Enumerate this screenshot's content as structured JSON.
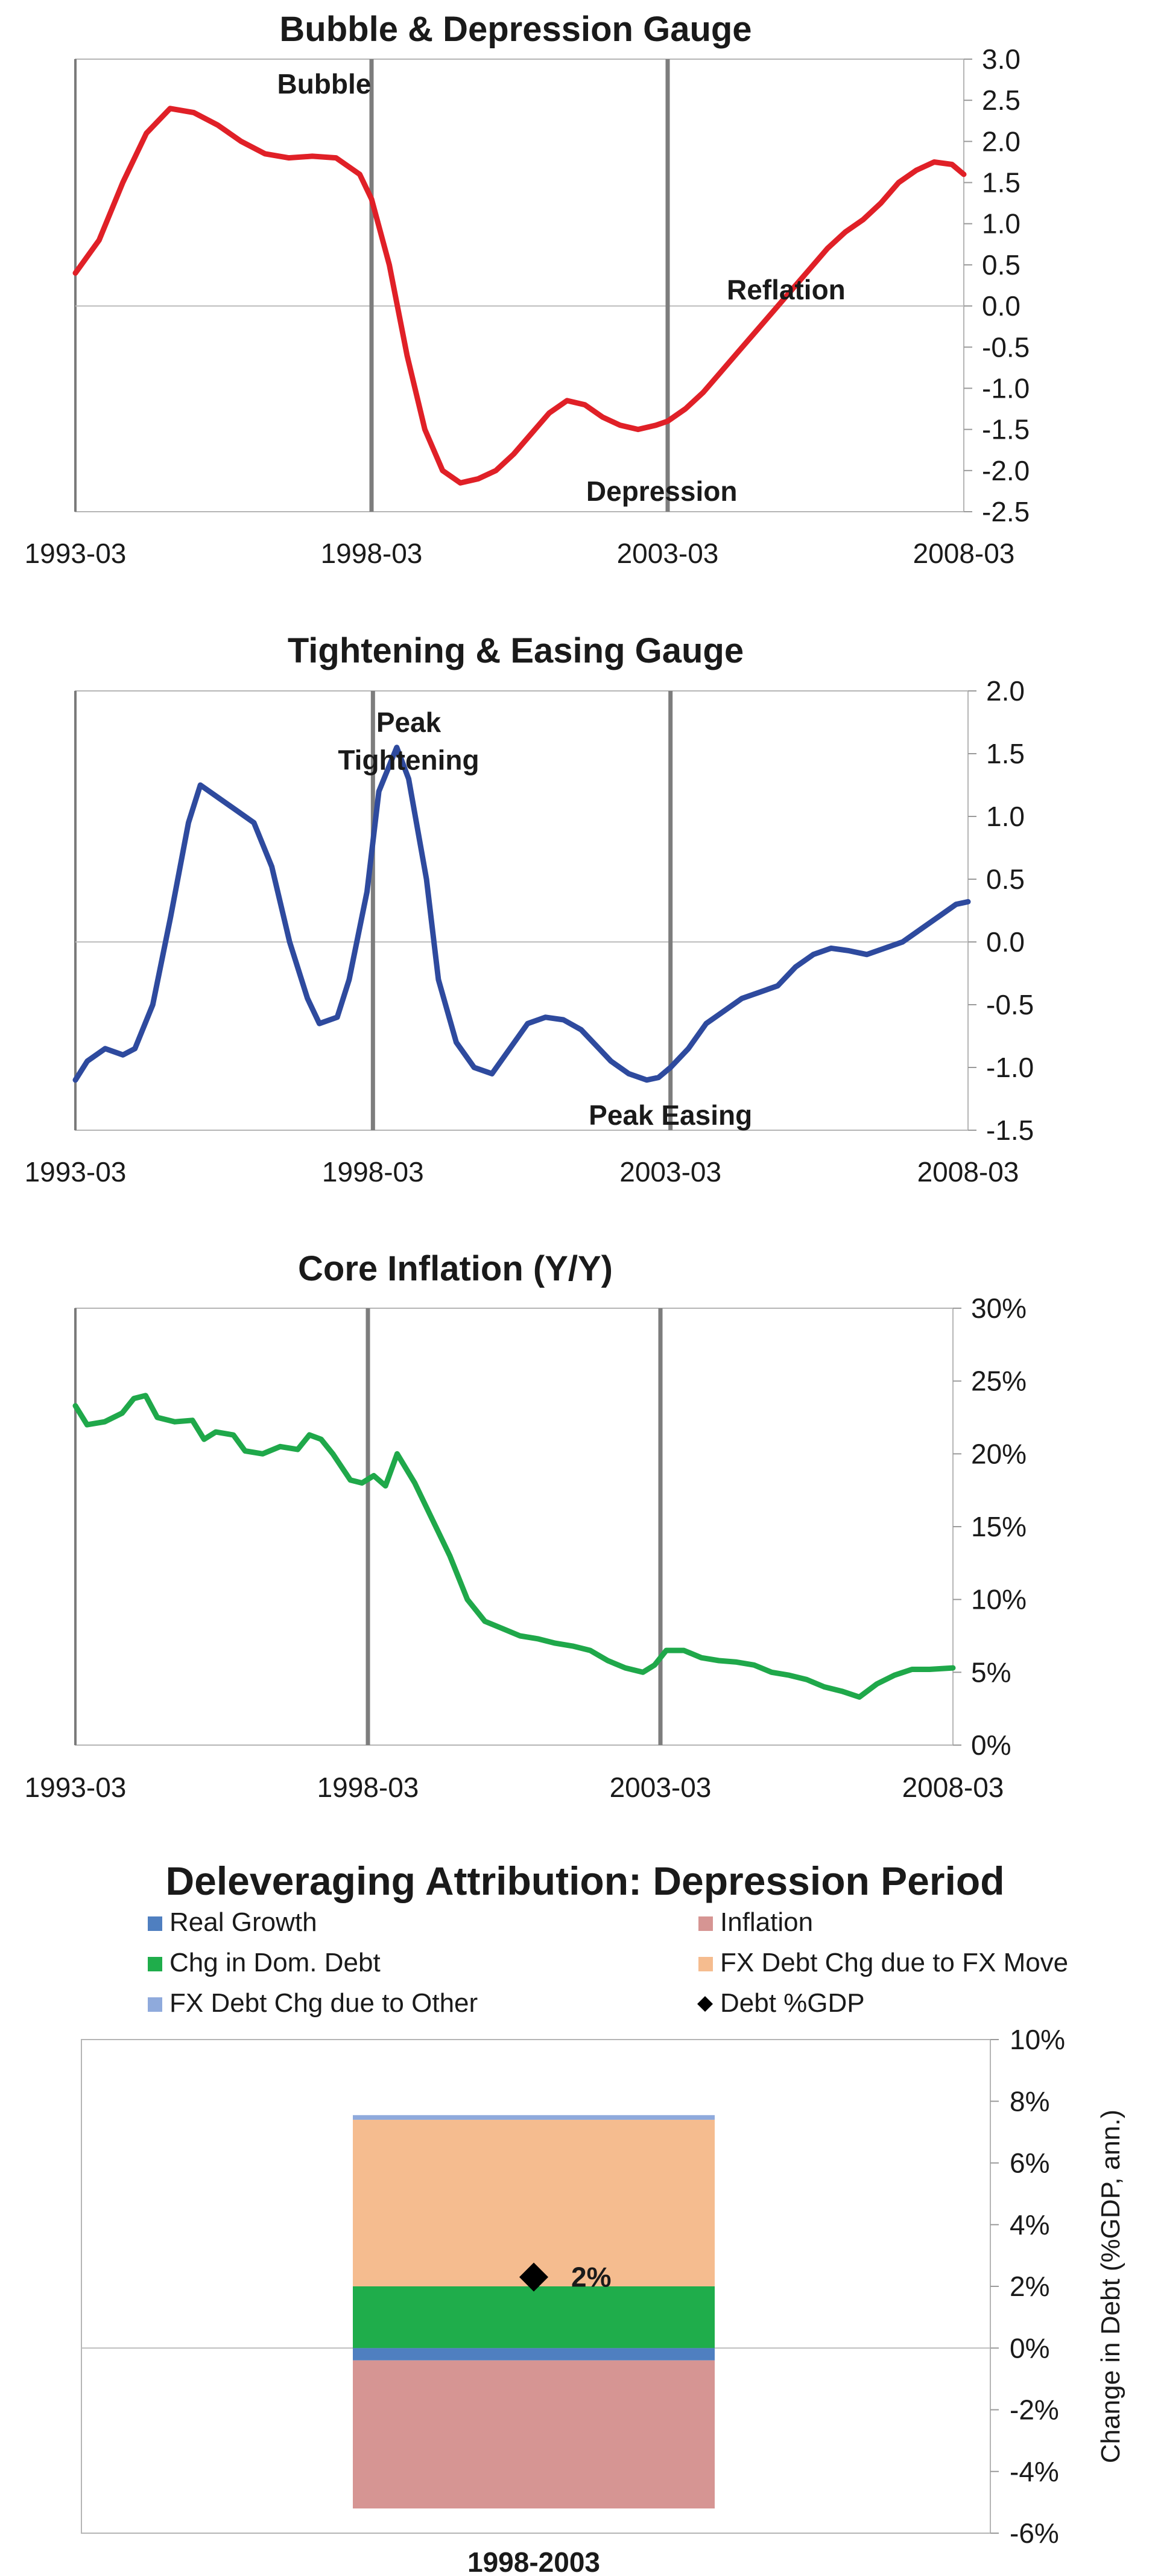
{
  "chart_data": [
    {
      "type": "line",
      "title": "Bubble & Depression Gauge",
      "x_ticks": [
        "1993-03",
        "1998-03",
        "2003-03",
        "2008-03"
      ],
      "x_range": [
        1993.0,
        2008.0
      ],
      "ylim": [
        -2.5,
        3.0
      ],
      "y_ticks": [
        "3.0",
        "2.5",
        "2.0",
        "1.5",
        "1.0",
        "0.5",
        "0.0",
        "-0.5",
        "-1.0",
        "-1.5",
        "-2.0",
        "-2.5"
      ],
      "y_tick_values": [
        3.0,
        2.5,
        2.0,
        1.5,
        1.0,
        0.5,
        0.0,
        -0.5,
        -1.0,
        -1.5,
        -2.0,
        -2.5
      ],
      "vlines": [
        1998.0,
        2003.0
      ],
      "annotations": [
        {
          "text": "Bubble",
          "x": 1997.2,
          "y": 2.7
        },
        {
          "text": "Reflation",
          "x": 2005.0,
          "y": 0.2
        },
        {
          "text": "Depression",
          "x": 2002.9,
          "y": -2.25
        }
      ],
      "color": "#e02027",
      "series": [
        {
          "x": [
            1993.0,
            1993.4,
            1993.8,
            1994.2,
            1994.6,
            1995.0,
            1995.4,
            1995.8,
            1996.2,
            1996.6,
            1997.0,
            1997.4,
            1997.8,
            1998.0,
            1998.3,
            1998.6,
            1998.9,
            1999.2,
            1999.5,
            1999.8,
            2000.1,
            2000.4,
            2000.7,
            2001.0,
            2001.3,
            2001.6,
            2001.9,
            2002.2,
            2002.5,
            2002.8,
            2003.0,
            2003.3,
            2003.6,
            2003.9,
            2004.2,
            2004.5,
            2004.8,
            2005.1,
            2005.4,
            2005.7,
            2006.0,
            2006.3,
            2006.6,
            2006.9,
            2007.2,
            2007.5,
            2007.8,
            2008.0
          ],
          "y": [
            0.4,
            0.8,
            1.5,
            2.1,
            2.4,
            2.35,
            2.2,
            2.0,
            1.85,
            1.8,
            1.82,
            1.8,
            1.6,
            1.3,
            0.5,
            -0.6,
            -1.5,
            -2.0,
            -2.15,
            -2.1,
            -2.0,
            -1.8,
            -1.55,
            -1.3,
            -1.15,
            -1.2,
            -1.35,
            -1.45,
            -1.5,
            -1.45,
            -1.4,
            -1.25,
            -1.05,
            -0.8,
            -0.55,
            -0.3,
            -0.05,
            0.2,
            0.45,
            0.7,
            0.9,
            1.05,
            1.25,
            1.5,
            1.65,
            1.75,
            1.72,
            1.6
          ]
        }
      ]
    },
    {
      "type": "line",
      "title": "Tightening & Easing Gauge",
      "x_ticks": [
        "1993-03",
        "1998-03",
        "2003-03",
        "2008-03"
      ],
      "x_range": [
        1993.0,
        2008.0
      ],
      "ylim": [
        -1.5,
        2.0
      ],
      "y_ticks": [
        "2.0",
        "1.5",
        "1.0",
        "0.5",
        "0.0",
        "-0.5",
        "-1.0",
        "-1.5"
      ],
      "y_tick_values": [
        2.0,
        1.5,
        1.0,
        0.5,
        0.0,
        -0.5,
        -1.0,
        -1.5
      ],
      "vlines": [
        1998.0,
        2003.0
      ],
      "annotations": [
        {
          "text": "Peak",
          "x": 1998.6,
          "y": 1.75
        },
        {
          "text": "Tightening",
          "x": 1998.6,
          "y": 1.45
        },
        {
          "text": "Peak Easing",
          "x": 2003.0,
          "y": -1.38
        }
      ],
      "color": "#2e4a9e",
      "series": [
        {
          "x": [
            1993.0,
            1993.2,
            1993.5,
            1993.8,
            1994.0,
            1994.3,
            1994.6,
            1994.9,
            1995.1,
            1995.4,
            1995.7,
            1996.0,
            1996.3,
            1996.6,
            1996.9,
            1997.1,
            1997.4,
            1997.6,
            1997.9,
            1998.1,
            1998.4,
            1998.6,
            1998.9,
            1999.1,
            1999.4,
            1999.7,
            2000.0,
            2000.3,
            2000.6,
            2000.9,
            2001.2,
            2001.5,
            2001.8,
            2002.0,
            2002.3,
            2002.6,
            2002.8,
            2003.0,
            2003.3,
            2003.6,
            2003.9,
            2004.2,
            2004.5,
            2004.8,
            2005.1,
            2005.4,
            2005.7,
            2006.0,
            2006.3,
            2006.6,
            2006.9,
            2007.2,
            2007.5,
            2007.8,
            2008.0
          ],
          "y": [
            -1.1,
            -0.95,
            -0.85,
            -0.9,
            -0.85,
            -0.5,
            0.2,
            0.95,
            1.25,
            1.15,
            1.05,
            0.95,
            0.6,
            0.0,
            -0.45,
            -0.65,
            -0.6,
            -0.3,
            0.4,
            1.2,
            1.55,
            1.3,
            0.5,
            -0.3,
            -0.8,
            -1.0,
            -1.05,
            -0.85,
            -0.65,
            -0.6,
            -0.62,
            -0.7,
            -0.85,
            -0.95,
            -1.05,
            -1.1,
            -1.08,
            -1.0,
            -0.85,
            -0.65,
            -0.55,
            -0.45,
            -0.4,
            -0.35,
            -0.2,
            -0.1,
            -0.05,
            -0.07,
            -0.1,
            -0.05,
            0.0,
            0.1,
            0.2,
            0.3,
            0.32
          ]
        }
      ]
    },
    {
      "type": "line",
      "title": "Core Inflation (Y/Y)",
      "x_ticks": [
        "1993-03",
        "1998-03",
        "2003-03",
        "2008-03"
      ],
      "x_range": [
        1993.0,
        2008.0
      ],
      "ylim": [
        0,
        30
      ],
      "y_ticks": [
        "30%",
        "25%",
        "20%",
        "15%",
        "10%",
        "5%",
        "0%"
      ],
      "y_tick_values": [
        30,
        25,
        20,
        15,
        10,
        5,
        0
      ],
      "vlines": [
        1998.0,
        2003.0
      ],
      "annotations": [],
      "color": "#1fa84a",
      "series": [
        {
          "x": [
            1993.0,
            1993.2,
            1993.5,
            1993.8,
            1994.0,
            1994.2,
            1994.4,
            1994.7,
            1995.0,
            1995.2,
            1995.4,
            1995.7,
            1995.9,
            1996.2,
            1996.5,
            1996.8,
            1997.0,
            1997.2,
            1997.4,
            1997.7,
            1997.9,
            1998.1,
            1998.3,
            1998.5,
            1998.8,
            1999.1,
            1999.4,
            1999.7,
            2000.0,
            2000.3,
            2000.6,
            2000.9,
            2001.2,
            2001.5,
            2001.8,
            2002.1,
            2002.4,
            2002.7,
            2002.9,
            2003.1,
            2003.4,
            2003.7,
            2004.0,
            2004.3,
            2004.6,
            2004.9,
            2005.2,
            2005.5,
            2005.8,
            2006.1,
            2006.4,
            2006.7,
            2007.0,
            2007.3,
            2007.6,
            2008.0
          ],
          "y": [
            23.3,
            22.0,
            22.2,
            22.8,
            23.8,
            24.0,
            22.5,
            22.2,
            22.3,
            21.0,
            21.5,
            21.3,
            20.2,
            20.0,
            20.5,
            20.3,
            21.3,
            21.0,
            20.0,
            18.2,
            18.0,
            18.5,
            17.8,
            20.0,
            18.0,
            15.5,
            13.0,
            10.0,
            8.5,
            8.0,
            7.5,
            7.3,
            7.0,
            6.8,
            6.5,
            5.8,
            5.3,
            5.0,
            5.5,
            6.5,
            6.5,
            6.0,
            5.8,
            5.7,
            5.5,
            5.0,
            4.8,
            4.5,
            4.0,
            3.7,
            3.3,
            4.2,
            4.8,
            5.2,
            5.2,
            5.3
          ]
        }
      ]
    },
    {
      "type": "bar",
      "title": "Deleveraging Attribution: Depression Period",
      "categories": [
        "1998-2003"
      ],
      "ylabel": "Change in Debt (%GDP, ann.)",
      "ylim": [
        -6,
        10
      ],
      "y_ticks": [
        "10%",
        "8%",
        "6%",
        "4%",
        "2%",
        "0%",
        "-2%",
        "-4%",
        "-6%"
      ],
      "y_tick_values": [
        10,
        8,
        6,
        4,
        2,
        0,
        -2,
        -4,
        -6
      ],
      "legend": [
        {
          "name": "Real Growth",
          "color": "#4f7fc0",
          "marker": "square"
        },
        {
          "name": "Inflation",
          "color": "#d69593",
          "marker": "square"
        },
        {
          "name": "Chg in Dom. Debt",
          "color": "#1fad4b",
          "marker": "square"
        },
        {
          "name": "FX Debt Chg due to FX Move",
          "color": "#f5bc8f",
          "marker": "square"
        },
        {
          "name": "FX Debt Chg due to Other",
          "color": "#8faadc",
          "marker": "square"
        },
        {
          "name": "Debt %GDP",
          "color": "#000000",
          "marker": "diamond"
        }
      ],
      "series": [
        {
          "name": "Real Growth",
          "values": [
            -0.4
          ]
        },
        {
          "name": "Inflation",
          "values": [
            -4.8
          ]
        },
        {
          "name": "Chg in Dom. Debt",
          "values": [
            2.0
          ]
        },
        {
          "name": "FX Debt Chg due to FX Move",
          "values": [
            5.4
          ]
        },
        {
          "name": "FX Debt Chg due to Other",
          "values": [
            0.15
          ]
        }
      ],
      "debt_gdp_value": 2.3,
      "debt_gdp_label": "2%"
    }
  ]
}
